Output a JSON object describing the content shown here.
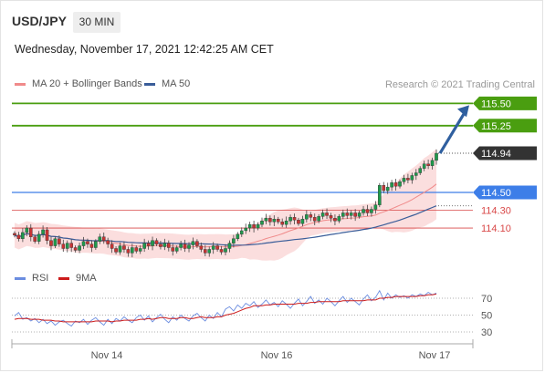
{
  "header": {
    "symbol": "USD/JPY",
    "timeframe": "30 MIN",
    "datetime": "Wednesday, November 17, 2021 12:42:25 AM CET"
  },
  "legend": {
    "ma20_label": "MA 20 + Bollinger Bands",
    "ma50_label": "MA 50",
    "credit": "Research © 2021 Trading Central"
  },
  "colors": {
    "resistance": "#4a9e10",
    "support": "#3d7ee8",
    "pivot": "#d94848",
    "ma20": "#f08a8a",
    "band_fill": "#fbdada",
    "ma50": "#3a5d99",
    "arrow": "#2f5f9f",
    "rsi": "#6b8de0",
    "rsi_ma": "#cc1b1b",
    "candle_up": "#1e9a4c",
    "candle_down": "#c83333"
  },
  "chart_data": {
    "type": "candlestick",
    "x_ticks": [
      "Nov 14",
      "Nov 16",
      "Nov 17"
    ],
    "price": {
      "current": 114.94,
      "ylim": [
        113.7,
        115.65
      ],
      "levels": [
        {
          "label": "115.50",
          "value": 115.5,
          "kind": "resistance"
        },
        {
          "label": "115.25",
          "value": 115.25,
          "kind": "resistance"
        },
        {
          "label": "114.50",
          "value": 114.5,
          "kind": "support"
        },
        {
          "label": "114.30",
          "value": 114.3,
          "kind": "pivot"
        },
        {
          "label": "114.10",
          "value": 114.1,
          "kind": "pivot"
        }
      ],
      "current_label": "114.94",
      "close_series": [
        114.02,
        113.98,
        114.05,
        114.1,
        114.0,
        113.95,
        114.03,
        114.08,
        113.96,
        113.9,
        113.98,
        113.92,
        113.87,
        113.93,
        113.88,
        113.85,
        113.9,
        113.95,
        113.92,
        113.88,
        113.95,
        114.0,
        113.96,
        113.92,
        113.87,
        113.83,
        113.9,
        113.86,
        113.82,
        113.88,
        113.84,
        113.87,
        113.93,
        113.9,
        113.96,
        113.92,
        113.89,
        113.93,
        113.88,
        113.84,
        113.88,
        113.92,
        113.87,
        113.91,
        113.95,
        113.9,
        113.86,
        113.82,
        113.86,
        113.9,
        113.86,
        113.83,
        113.87,
        113.93,
        113.98,
        114.03,
        114.07,
        114.1,
        114.14,
        114.1,
        114.14,
        114.18,
        114.21,
        114.17,
        114.2,
        114.17,
        114.14,
        114.18,
        114.22,
        114.19,
        114.15,
        114.2,
        114.25,
        114.22,
        114.18,
        114.23,
        114.27,
        114.24,
        114.21,
        114.18,
        114.23,
        114.27,
        114.24,
        114.27,
        114.23,
        114.27,
        114.31,
        114.27,
        114.31,
        114.36,
        114.58,
        114.52,
        114.56,
        114.61,
        114.57,
        114.62,
        114.66,
        114.64,
        114.69,
        114.72,
        114.77,
        114.82,
        114.8,
        114.86,
        114.94
      ]
    },
    "indicators": {
      "ma20": "MA 20 + Bollinger Bands",
      "ma50": "MA 50"
    },
    "rsi": {
      "legend": [
        "RSI",
        "9MA"
      ],
      "ylim": [
        20,
        80
      ],
      "ticks": [
        70,
        50,
        30
      ],
      "values": [
        49,
        53,
        45,
        47,
        43,
        46,
        41,
        45,
        40,
        43,
        38,
        42,
        44,
        40,
        37,
        43,
        41,
        45,
        39,
        44,
        47,
        42,
        38,
        45,
        40,
        46,
        43,
        48,
        44,
        41,
        47,
        50,
        44,
        49,
        42,
        47,
        51,
        45,
        41,
        48,
        44,
        50,
        46,
        43,
        49,
        52,
        47,
        43,
        50,
        46,
        53,
        48,
        57,
        60,
        55,
        62,
        58,
        64,
        61,
        66,
        59,
        63,
        68,
        62,
        65,
        60,
        67,
        63,
        58,
        64,
        69,
        61,
        66,
        72,
        64,
        68,
        63,
        70,
        66,
        61,
        67,
        72,
        65,
        70,
        66,
        62,
        69,
        74,
        67,
        71,
        79,
        68,
        76,
        70,
        74,
        71,
        73,
        70,
        74,
        72,
        75,
        73,
        77,
        74,
        76
      ],
      "ma_values": [
        45,
        46,
        46,
        46,
        45,
        45,
        45,
        44,
        44,
        44,
        43,
        43,
        42,
        42,
        42,
        42,
        42,
        42,
        42,
        42,
        43,
        43,
        43,
        43,
        42,
        43,
        43,
        44,
        44,
        44,
        44,
        45,
        45,
        46,
        45,
        46,
        47,
        47,
        46,
        46,
        46,
        47,
        47,
        46,
        46,
        47,
        48,
        47,
        47,
        47,
        48,
        48,
        50,
        51,
        52,
        54,
        56,
        58,
        59,
        61,
        61,
        61,
        62,
        62,
        63,
        63,
        63,
        63,
        63,
        63,
        64,
        64,
        64,
        65,
        65,
        66,
        66,
        66,
        66,
        66,
        66,
        67,
        67,
        67,
        67,
        67,
        67,
        68,
        68,
        68,
        70,
        70,
        71,
        71,
        72,
        72,
        72,
        72,
        72,
        72,
        73,
        73,
        74,
        74,
        75
      ]
    }
  }
}
